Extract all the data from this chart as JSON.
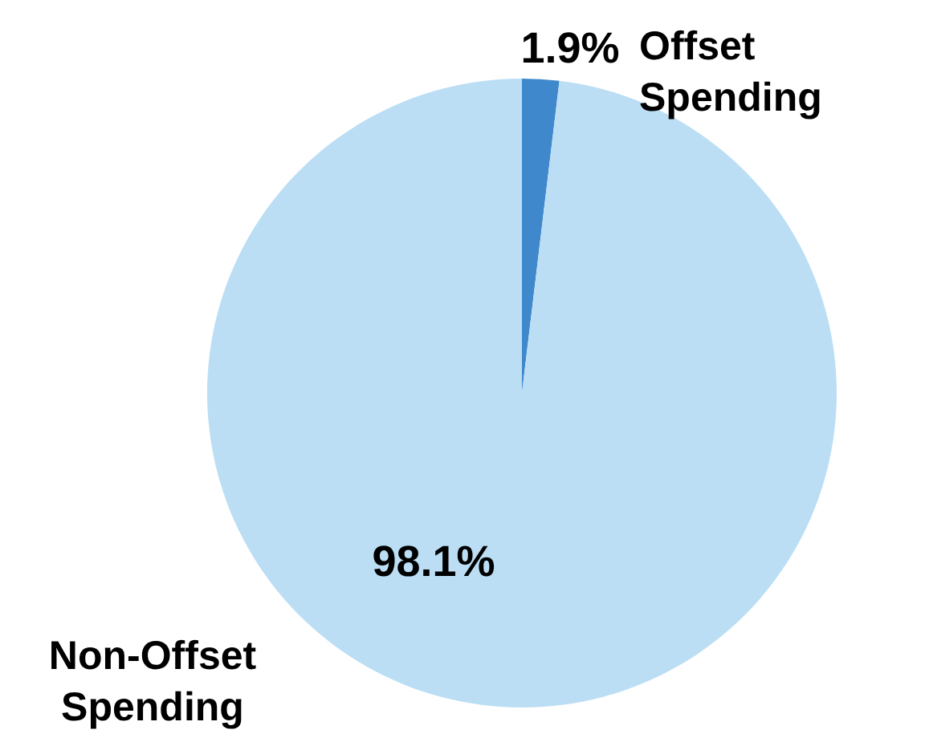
{
  "chart_data": {
    "type": "pie",
    "categories": [
      "Offset Spending",
      "Non-Offset Spending"
    ],
    "values": [
      1.9,
      98.1
    ],
    "colors": [
      "#3f88cc",
      "#bbdef5"
    ],
    "value_labels": [
      "1.9%",
      "98.1%"
    ]
  }
}
